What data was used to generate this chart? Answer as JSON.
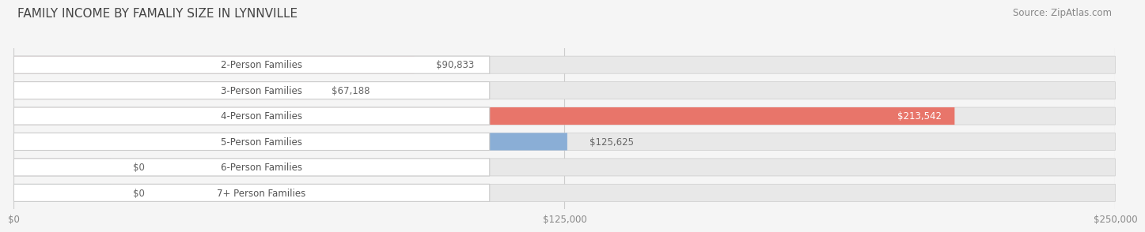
{
  "title": "FAMILY INCOME BY FAMALIY SIZE IN LYNNVILLE",
  "source": "Source: ZipAtlas.com",
  "categories": [
    "2-Person Families",
    "3-Person Families",
    "4-Person Families",
    "5-Person Families",
    "6-Person Families",
    "7+ Person Families"
  ],
  "values": [
    90833,
    67188,
    213542,
    125625,
    0,
    0
  ],
  "bar_colors": [
    "#F4829E",
    "#F5BF7A",
    "#E8756A",
    "#8AAED6",
    "#C8A8D8",
    "#6DC5C0"
  ],
  "value_labels": [
    "$90,833",
    "$67,188",
    "$213,542",
    "$125,625",
    "$0",
    "$0"
  ],
  "label_inside": [
    false,
    false,
    true,
    false,
    false,
    false
  ],
  "x_max": 250000,
  "x_tick_labels": [
    "$0",
    "$125,000",
    "$250,000"
  ],
  "background_color": "#F5F5F5",
  "bar_bg_color": "#E8E8E8",
  "label_bg_color": "#FFFFFF",
  "title_fontsize": 11,
  "source_fontsize": 8.5,
  "bar_label_fontsize": 8.5,
  "category_fontsize": 8.5,
  "tick_fontsize": 8.5,
  "zero_bar_width": 22000
}
